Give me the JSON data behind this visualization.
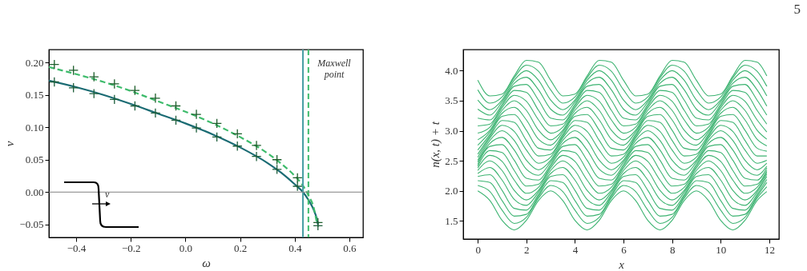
{
  "chart_data": [
    {
      "type": "line",
      "xlabel": "ω",
      "ylabel": "v",
      "xlim": [
        -0.5,
        0.65
      ],
      "ylim": [
        -0.07,
        0.22
      ],
      "xticks": [
        {
          "value": -0.4,
          "label": "−0.4"
        },
        {
          "value": -0.2,
          "label": "−0.2"
        },
        {
          "value": 0,
          "label": "0.0"
        },
        {
          "value": 0.2,
          "label": "0.2"
        },
        {
          "value": 0.4,
          "label": "0.4"
        },
        {
          "value": 0.6,
          "label": "0.6"
        }
      ],
      "yticks": [
        {
          "value": -0.05,
          "label": "−0.05"
        },
        {
          "value": 0,
          "label": "0.00"
        },
        {
          "value": 0.05,
          "label": "0.05"
        },
        {
          "value": 0.1,
          "label": "0.10"
        },
        {
          "value": 0.15,
          "label": "0.15"
        },
        {
          "value": 0.2,
          "label": "0.20"
        }
      ],
      "series": [
        {
          "type": "line",
          "color": "#1a6b73",
          "line_style": "solid",
          "x": [
            -0.5,
            -0.4,
            -0.3,
            -0.2,
            -0.1,
            0,
            0.1,
            0.2,
            0.3,
            0.35,
            0.4,
            0.43,
            0.45,
            0.47,
            0.48,
            0.485
          ],
          "values": [
            0.172,
            0.162,
            0.15,
            0.136,
            0.121,
            0.106,
            0.089,
            0.069,
            0.045,
            0.03,
            0.012,
            0,
            -0.012,
            -0.028,
            -0.04,
            -0.05
          ]
        },
        {
          "type": "line",
          "color": "#3dbb6b",
          "line_style": "dashed",
          "x": [
            -0.5,
            -0.4,
            -0.3,
            -0.2,
            -0.1,
            0,
            0.1,
            0.2,
            0.3,
            0.35,
            0.4,
            0.43,
            0.45,
            0.47,
            0.48
          ],
          "values": [
            0.193,
            0.182,
            0.17,
            0.156,
            0.14,
            0.124,
            0.106,
            0.085,
            0.06,
            0.044,
            0.025,
            0.01,
            -0.005,
            -0.025,
            -0.045
          ]
        },
        {
          "type": "scatter",
          "color": "#1d5e2b",
          "marker": "cross",
          "x": [
            -0.48,
            -0.41,
            -0.335,
            -0.26,
            -0.185,
            -0.11,
            -0.035,
            0.04,
            0.115,
            0.19,
            0.26,
            0.335,
            0.41,
            0.485
          ],
          "values": [
            0.197,
            0.188,
            0.178,
            0.167,
            0.157,
            0.145,
            0.133,
            0.12,
            0.106,
            0.09,
            0.072,
            0.05,
            0.022,
            -0.047
          ]
        },
        {
          "type": "scatter",
          "color": "#1d5e3b",
          "marker": "cross",
          "x": [
            -0.48,
            -0.41,
            -0.335,
            -0.26,
            -0.185,
            -0.11,
            -0.035,
            0.04,
            0.115,
            0.19,
            0.26,
            0.335,
            0.41,
            0.485
          ],
          "values": [
            0.17,
            0.161,
            0.152,
            0.143,
            0.133,
            0.122,
            0.111,
            0.099,
            0.085,
            0.071,
            0.055,
            0.035,
            0.009,
            -0.052
          ]
        }
      ],
      "ref_lines": [
        {
          "axis": "x",
          "value": 0.43,
          "color": "#4a9fa5"
        },
        {
          "axis": "x",
          "value": 0.45,
          "color": "#3dbb6b",
          "line_style": "dashed"
        },
        {
          "axis": "y",
          "value": 0,
          "color": "#808080"
        }
      ],
      "annotations": [
        "Maxwell point",
        "v"
      ]
    },
    {
      "type": "line",
      "xlabel": "x",
      "ylabel": "n(x, t) + t",
      "xlim": [
        -0.6,
        12.4
      ],
      "ylim": [
        1.2,
        4.35
      ],
      "xticks": [
        0,
        2,
        4,
        6,
        8,
        10,
        12
      ],
      "yticks": [
        1.5,
        {
          "value": 2,
          "label": "2.0"
        },
        2.5,
        {
          "value": 3,
          "label": "3.0"
        },
        3.5,
        {
          "value": 4,
          "label": "4.0"
        }
      ],
      "x": [
        0,
        0.5,
        1,
        1.5,
        2,
        2.5,
        3,
        3.5,
        4,
        4.5,
        5,
        5.5,
        6,
        6.5,
        7,
        7.5,
        8,
        8.5,
        9,
        9.5,
        10,
        10.5,
        11,
        11.5,
        11.9
      ],
      "series": [
        {
          "color": "#3cb371",
          "values": [
            2,
            1.84,
            1.51,
            1.35,
            1.51,
            1.84,
            2,
            1.84,
            1.51,
            1.35,
            1.51,
            1.84,
            2,
            1.84,
            1.51,
            1.35,
            1.51,
            1.84,
            2,
            1.84,
            1.51,
            1.35,
            1.51,
            1.84,
            1.99
          ]
        },
        {
          "color": "#3cb371",
          "values": [
            2.09,
            1.99,
            1.68,
            1.46,
            1.56,
            1.88,
            2.09,
            1.99,
            1.68,
            1.46,
            1.56,
            1.88,
            2.09,
            1.99,
            1.68,
            1.46,
            1.56,
            1.88,
            2.09,
            1.99,
            1.68,
            1.46,
            1.56,
            1.88,
            2.07
          ]
        },
        {
          "color": "#3cb371",
          "values": [
            2.17,
            2.14,
            1.84,
            1.58,
            1.61,
            1.91,
            2.17,
            2.14,
            1.84,
            1.58,
            1.61,
            1.91,
            2.17,
            2.14,
            1.84,
            1.58,
            1.61,
            1.91,
            2.17,
            2.14,
            1.84,
            1.58,
            1.61,
            1.91,
            2.14
          ]
        },
        {
          "color": "#3cb371",
          "values": [
            2.24,
            2.27,
            2.01,
            1.71,
            1.68,
            1.94,
            2.24,
            2.27,
            2.01,
            1.71,
            1.68,
            1.94,
            2.24,
            2.27,
            2.01,
            1.71,
            1.68,
            1.94,
            2.24,
            2.27,
            2.01,
            1.71,
            1.68,
            1.94,
            2.19
          ]
        },
        {
          "color": "#3cb371",
          "values": [
            2.29,
            2.39,
            2.18,
            1.86,
            1.76,
            1.98,
            2.29,
            2.39,
            2.18,
            1.86,
            1.76,
            1.98,
            2.29,
            2.39,
            2.18,
            1.86,
            1.76,
            1.98,
            2.29,
            2.39,
            2.18,
            1.86,
            1.76,
            1.98,
            2.24
          ]
        },
        {
          "color": "#3cb371",
          "values": [
            2.34,
            2.5,
            2.34,
            2.01,
            1.85,
            2.01,
            2.34,
            2.5,
            2.34,
            2.01,
            1.85,
            2.01,
            2.34,
            2.5,
            2.34,
            2.01,
            1.85,
            2.01,
            2.34,
            2.5,
            2.34,
            2.01,
            1.85,
            2.01,
            2.28
          ]
        },
        {
          "color": "#3cb371",
          "values": [
            2.38,
            2.59,
            2.49,
            2.18,
            1.96,
            2.06,
            2.38,
            2.59,
            2.49,
            2.18,
            1.96,
            2.06,
            2.38,
            2.59,
            2.49,
            2.18,
            1.96,
            2.06,
            2.38,
            2.59,
            2.49,
            2.18,
            1.96,
            2.06,
            2.31
          ]
        },
        {
          "color": "#3cb371",
          "values": [
            2.41,
            2.67,
            2.64,
            2.34,
            2.08,
            2.11,
            2.41,
            2.67,
            2.64,
            2.34,
            2.08,
            2.11,
            2.41,
            2.67,
            2.64,
            2.34,
            2.08,
            2.11,
            2.41,
            2.67,
            2.64,
            2.34,
            2.08,
            2.11,
            2.34
          ]
        },
        {
          "color": "#3cb371",
          "values": [
            2.44,
            2.74,
            2.77,
            2.51,
            2.21,
            2.18,
            2.44,
            2.74,
            2.77,
            2.51,
            2.21,
            2.18,
            2.44,
            2.74,
            2.77,
            2.51,
            2.21,
            2.18,
            2.44,
            2.74,
            2.77,
            2.51,
            2.21,
            2.18,
            2.38
          ]
        },
        {
          "color": "#3cb371",
          "values": [
            2.48,
            2.79,
            2.89,
            2.68,
            2.36,
            2.26,
            2.48,
            2.79,
            2.89,
            2.68,
            2.36,
            2.26,
            2.48,
            2.79,
            2.89,
            2.68,
            2.36,
            2.26,
            2.48,
            2.79,
            2.89,
            2.68,
            2.36,
            2.26,
            2.41
          ]
        },
        {
          "color": "#3cb371",
          "values": [
            2.51,
            2.84,
            3,
            2.84,
            2.51,
            2.35,
            2.51,
            2.84,
            3,
            2.84,
            2.51,
            2.35,
            2.51,
            2.84,
            3,
            2.84,
            2.51,
            2.35,
            2.51,
            2.84,
            3,
            2.84,
            2.51,
            2.35,
            2.46
          ]
        },
        {
          "color": "#3cb371",
          "values": [
            2.56,
            2.88,
            3.09,
            2.99,
            2.68,
            2.46,
            2.56,
            2.88,
            3.09,
            2.99,
            2.68,
            2.46,
            2.56,
            2.88,
            3.09,
            2.99,
            2.68,
            2.46,
            2.56,
            2.88,
            3.09,
            2.99,
            2.68,
            2.46,
            2.51
          ]
        },
        {
          "color": "#3cb371",
          "values": [
            2.61,
            2.91,
            3.17,
            3.14,
            2.84,
            2.58,
            2.61,
            2.91,
            3.17,
            3.14,
            2.84,
            2.58,
            2.61,
            2.91,
            3.17,
            3.14,
            2.84,
            2.58,
            2.61,
            2.91,
            3.17,
            3.14,
            2.84,
            2.58,
            2.58
          ]
        },
        {
          "color": "#3cb371",
          "values": [
            2.68,
            2.94,
            3.24,
            3.27,
            3.01,
            2.71,
            2.68,
            2.94,
            3.24,
            3.27,
            3.01,
            2.71,
            2.68,
            2.94,
            3.24,
            3.27,
            3.01,
            2.71,
            2.68,
            2.94,
            3.24,
            3.27,
            3.01,
            2.71,
            2.66
          ]
        },
        {
          "color": "#3cb371",
          "values": [
            2.76,
            2.98,
            3.29,
            3.39,
            3.18,
            2.86,
            2.76,
            2.98,
            3.29,
            3.39,
            3.18,
            2.86,
            2.76,
            2.98,
            3.29,
            3.39,
            3.18,
            2.86,
            2.76,
            2.98,
            3.29,
            3.39,
            3.18,
            2.86,
            2.75
          ]
        },
        {
          "color": "#3cb371",
          "values": [
            2.85,
            3.01,
            3.34,
            3.5,
            3.34,
            3.01,
            2.85,
            3.01,
            3.34,
            3.5,
            3.34,
            3.01,
            2.85,
            3.01,
            3.34,
            3.5,
            3.34,
            3.01,
            2.85,
            3.01,
            3.34,
            3.5,
            3.34,
            3.01,
            2.86
          ]
        },
        {
          "color": "#3cb371",
          "values": [
            2.96,
            3.06,
            3.38,
            3.59,
            3.49,
            3.18,
            2.96,
            3.06,
            3.38,
            3.59,
            3.49,
            3.18,
            2.96,
            3.06,
            3.38,
            3.59,
            3.49,
            3.18,
            2.96,
            3.06,
            3.38,
            3.59,
            3.49,
            3.18,
            2.98
          ]
        },
        {
          "color": "#3cb371",
          "values": [
            3.08,
            3.11,
            3.41,
            3.67,
            3.64,
            3.34,
            3.08,
            3.11,
            3.41,
            3.67,
            3.64,
            3.34,
            3.08,
            3.11,
            3.41,
            3.67,
            3.64,
            3.34,
            3.08,
            3.11,
            3.41,
            3.67,
            3.64,
            3.34,
            3.11
          ]
        },
        {
          "color": "#3cb371",
          "values": [
            3.21,
            3.18,
            3.44,
            3.74,
            3.77,
            3.51,
            3.21,
            3.18,
            3.44,
            3.74,
            3.77,
            3.51,
            3.21,
            3.18,
            3.44,
            3.74,
            3.77,
            3.51,
            3.21,
            3.18,
            3.44,
            3.74,
            3.77,
            3.51,
            3.26
          ]
        },
        {
          "color": "#3cb371",
          "values": [
            3.36,
            3.26,
            3.48,
            3.79,
            3.89,
            3.68,
            3.36,
            3.26,
            3.48,
            3.79,
            3.89,
            3.68,
            3.36,
            3.26,
            3.48,
            3.79,
            3.89,
            3.68,
            3.36,
            3.26,
            3.48,
            3.79,
            3.89,
            3.68,
            3.41
          ]
        },
        {
          "color": "#3cb371",
          "values": [
            3.51,
            3.35,
            3.51,
            3.84,
            4,
            3.84,
            3.51,
            3.35,
            3.51,
            3.84,
            4,
            3.84,
            3.51,
            3.35,
            3.51,
            3.84,
            4,
            3.84,
            3.51,
            3.35,
            3.51,
            3.84,
            4,
            3.84,
            3.58
          ]
        },
        {
          "color": "#3cb371",
          "values": [
            3.68,
            3.46,
            3.56,
            3.88,
            4.09,
            3.99,
            3.68,
            3.46,
            3.56,
            3.88,
            4.09,
            3.99,
            3.68,
            3.46,
            3.56,
            3.88,
            4.09,
            3.99,
            3.68,
            3.46,
            3.56,
            3.88,
            4.09,
            3.99,
            3.74
          ]
        },
        {
          "color": "#3cb371",
          "values": [
            3.84,
            3.58,
            3.61,
            3.91,
            4.17,
            4.14,
            3.84,
            3.58,
            3.61,
            3.91,
            4.17,
            4.14,
            3.84,
            3.58,
            3.61,
            3.91,
            4.17,
            4.14,
            3.84,
            3.58,
            3.61,
            3.91,
            4.17,
            4.14,
            3.91
          ]
        }
      ],
      "annotations": [
        "5"
      ]
    }
  ]
}
